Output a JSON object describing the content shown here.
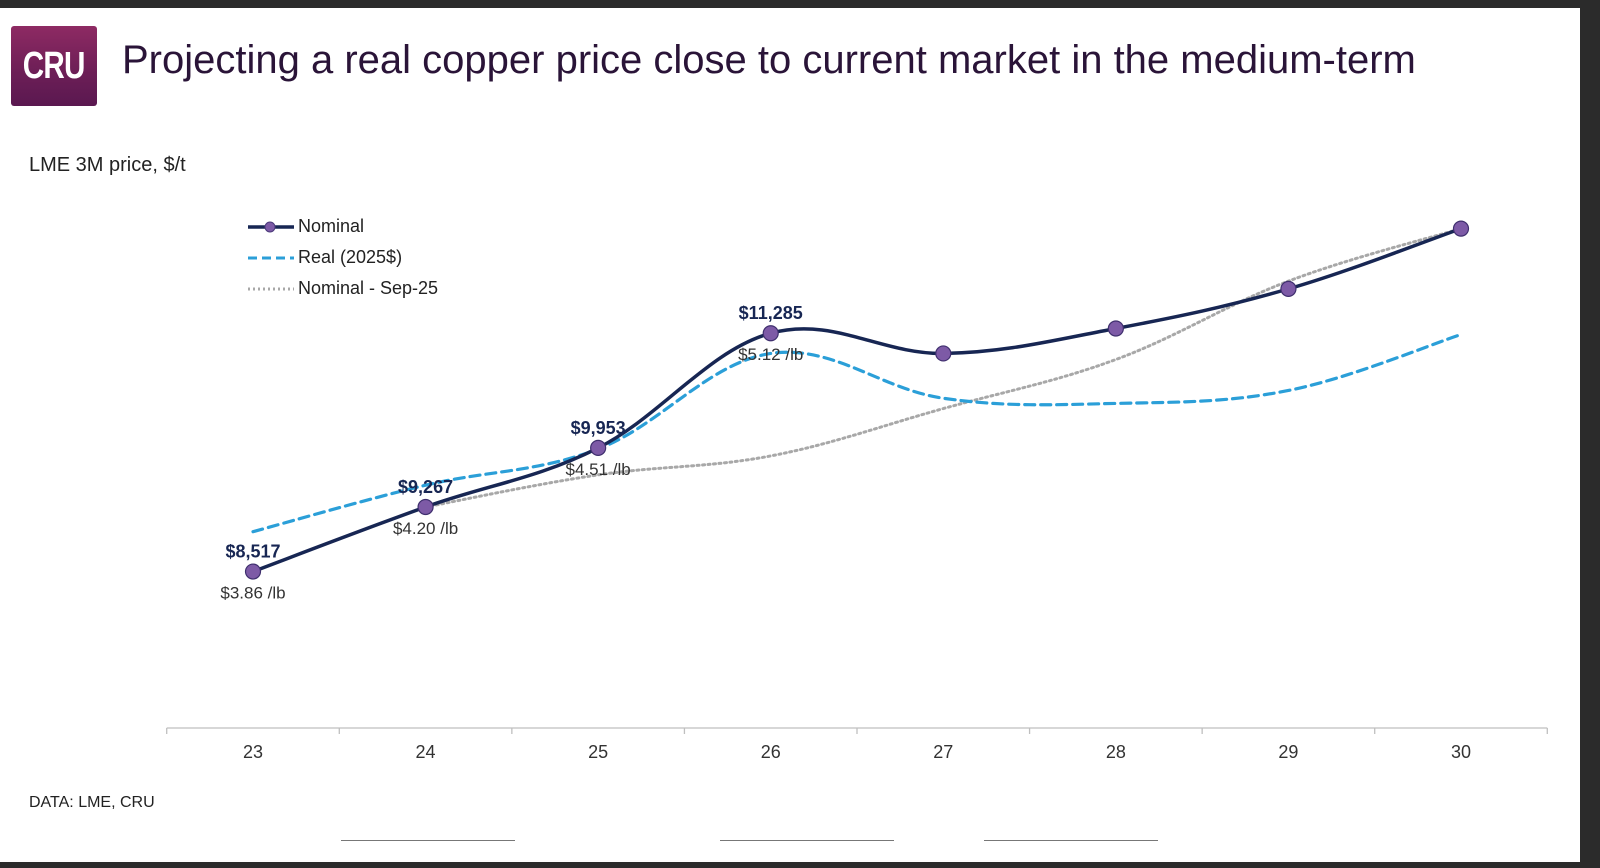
{
  "header": {
    "logo_text": "CRU",
    "title": "Projecting a real copper price close to current market in the medium-term"
  },
  "chart_data": {
    "type": "line",
    "ylabel": "LME 3M price, $/t",
    "source": "DATA: LME, CRU",
    "x": [
      "23",
      "24",
      "25",
      "26",
      "27",
      "28",
      "29",
      "30"
    ],
    "ylim": [
      6700,
      12600
    ],
    "legend_position": "top-left",
    "grid": false,
    "series": [
      {
        "name": "Nominal",
        "style": "solid",
        "color": "#172653",
        "values": [
          8517,
          9267,
          9953,
          11285,
          11050,
          11340,
          11800,
          12500
        ]
      },
      {
        "name": "Real (2025$)",
        "style": "dashed",
        "color": "#2b9fd8",
        "values": [
          8980,
          9520,
          9940,
          11050,
          10530,
          10470,
          10620,
          11270
        ]
      },
      {
        "name": "Nominal - Sep-25",
        "style": "dotted",
        "color": "#a8a8a8",
        "values": [
          null,
          9267,
          9640,
          9860,
          10410,
          10980,
          11890,
          12500
        ]
      }
    ],
    "annotations": [
      {
        "x": "23",
        "value": "$8,517",
        "sub": "$3.86 /lb"
      },
      {
        "x": "24",
        "value": "$9,267",
        "sub": "$4.20 /lb"
      },
      {
        "x": "25",
        "value": "$9,953",
        "sub": "$4.51 /lb"
      },
      {
        "x": "26",
        "value": "$11,285",
        "sub": "$5.12 /lb"
      }
    ]
  }
}
